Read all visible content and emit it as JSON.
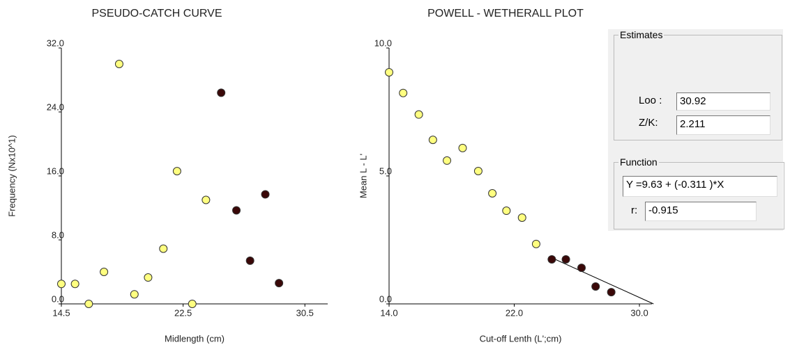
{
  "chart_data": [
    {
      "type": "scatter",
      "title": "PSEUDO-CATCH CURVE",
      "xlabel": "Midlength (cm)",
      "ylabel": "Frequency (Nx10^1)",
      "xlim": [
        14.5,
        32.0
      ],
      "ylim": [
        0,
        32
      ],
      "xticks": [
        {
          "value": 14.5,
          "label": "14.5"
        },
        {
          "value": 22.5,
          "label": "22.5"
        },
        {
          "value": 30.5,
          "label": "30.5"
        }
      ],
      "yticks": [
        {
          "value": 0,
          "label": "0.0"
        },
        {
          "value": 8,
          "label": "8.0"
        },
        {
          "value": 16,
          "label": "16.0"
        },
        {
          "value": 24,
          "label": "24.0"
        },
        {
          "value": 32,
          "label": "32.0"
        }
      ],
      "series": [
        {
          "color": "#ffff80",
          "x": [
            14.5,
            15.4,
            16.3,
            17.3,
            18.3,
            19.3,
            20.2,
            21.2,
            22.1,
            23.1,
            24.0
          ],
          "values": [
            2.5,
            2.5,
            0,
            4.0,
            30.0,
            1.2,
            3.3,
            6.9,
            16.6,
            0,
            13.0
          ]
        },
        {
          "color": "#3a0808",
          "x": [
            25.0,
            26.0,
            26.9,
            27.9,
            28.8
          ],
          "values": [
            26.4,
            11.7,
            5.4,
            13.7,
            2.6
          ]
        }
      ]
    },
    {
      "type": "scatter",
      "title": "POWELL - WETHERALL PLOT",
      "xlabel": "Cut-off Lenth (L';cm)",
      "ylabel": "Mean L - L'",
      "xlim": [
        14.0,
        30.8
      ],
      "ylim": [
        0,
        10
      ],
      "xticks": [
        {
          "value": 14,
          "label": "14.0"
        },
        {
          "value": 22,
          "label": "22.0"
        },
        {
          "value": 30,
          "label": "30.0"
        }
      ],
      "yticks": [
        {
          "value": 0,
          "label": "0.0"
        },
        {
          "value": 5,
          "label": "5.0"
        },
        {
          "value": 10,
          "label": "10.0"
        }
      ],
      "series": [
        {
          "color": "#ffff80",
          "x": [
            14.0,
            14.9,
            15.9,
            16.8,
            17.7,
            18.7,
            19.7,
            20.6,
            21.5,
            22.5,
            23.4
          ],
          "values": [
            9.05,
            8.24,
            7.4,
            6.41,
            5.6,
            6.09,
            5.19,
            4.32,
            3.64,
            3.37,
            2.34
          ]
        },
        {
          "color": "#3a0808",
          "x": [
            24.4,
            25.3,
            26.3,
            27.2,
            28.2
          ],
          "values": [
            1.74,
            1.74,
            1.41,
            0.68,
            0.46
          ]
        }
      ],
      "fit_line": {
        "x": [
          24.4,
          30.9
        ],
        "values": [
          1.8,
          0
        ]
      }
    }
  ],
  "panel": {
    "estimates": {
      "title": "Estimates",
      "loo_label": "Loo :",
      "loo": "30.92",
      "zk_label": "Z/K:",
      "zk": "2.211"
    },
    "function": {
      "title": "Function",
      "formula": "Y =9.63 + (-0.311 )*X",
      "r_label": "r:",
      "r": "-0.915"
    }
  }
}
